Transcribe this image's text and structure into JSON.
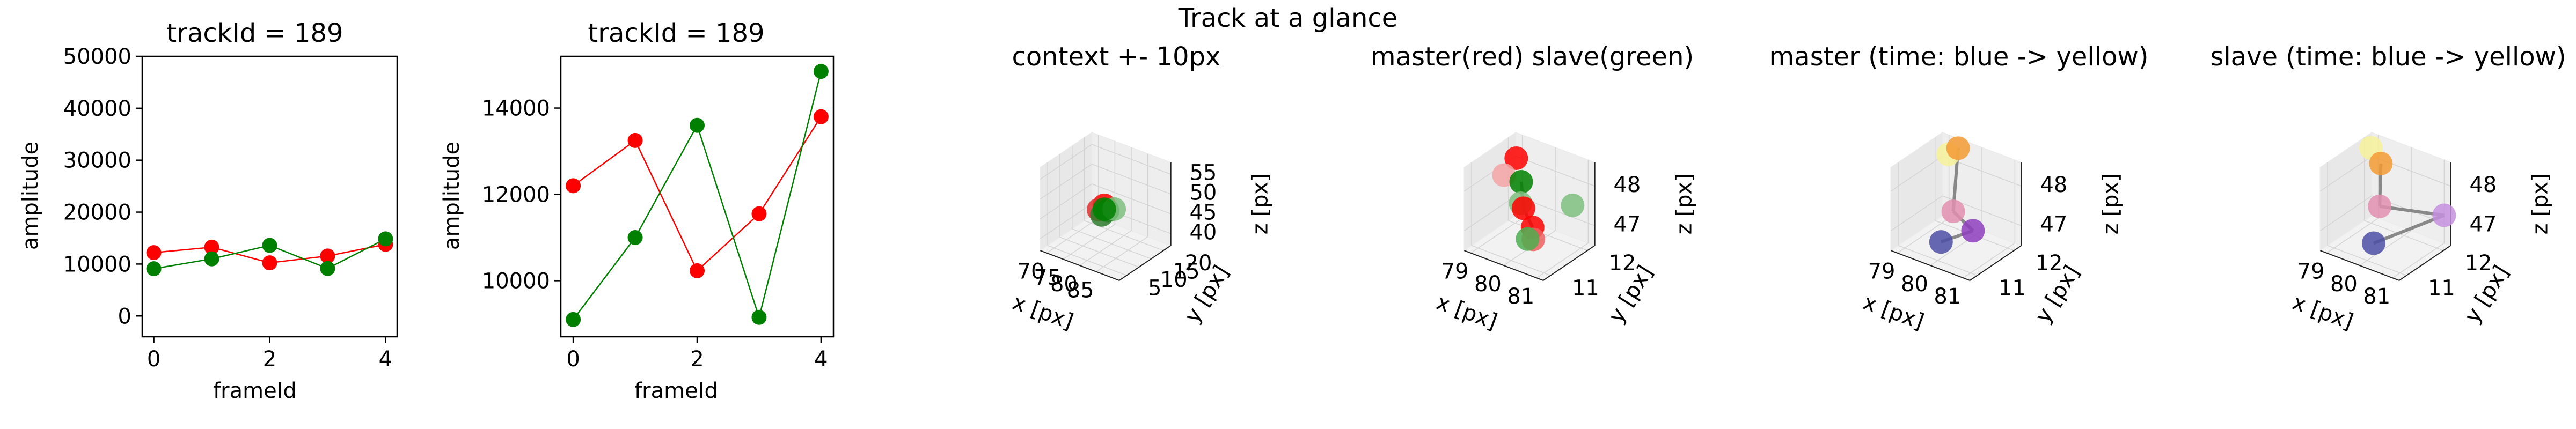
{
  "figure": {
    "suptitle": "Track at a glance"
  },
  "chart_data": [
    {
      "type": "line",
      "title": "trackId = 189",
      "xlabel": "frameId",
      "ylabel": "amplitude",
      "xlim": [
        -0.2,
        4.2
      ],
      "ylim": [
        -4000,
        50000
      ],
      "xticks": [
        0,
        2,
        4
      ],
      "yticks": [
        0,
        10000,
        20000,
        30000,
        40000,
        50000
      ],
      "x": [
        0,
        1,
        2,
        3,
        4
      ],
      "series": [
        {
          "color": "#ff0000",
          "values": [
            12200,
            13250,
            10230,
            11550,
            13800
          ]
        },
        {
          "color": "#008000",
          "values": [
            9100,
            11000,
            13600,
            9150,
            14850
          ]
        }
      ]
    },
    {
      "type": "line",
      "title": "trackId = 189",
      "xlabel": "frameId",
      "ylabel": "amplitude",
      "xlim": [
        -0.2,
        4.2
      ],
      "ylim": [
        8700,
        15200
      ],
      "xticks": [
        0,
        2,
        4
      ],
      "yticks": [
        10000,
        12000,
        14000
      ],
      "x": [
        0,
        1,
        2,
        3,
        4
      ],
      "series": [
        {
          "color": "#ff0000",
          "values": [
            12200,
            13250,
            10230,
            11550,
            13800
          ]
        },
        {
          "color": "#008000",
          "values": [
            9100,
            11000,
            13600,
            9150,
            14850
          ]
        }
      ]
    },
    {
      "type": "scatter",
      "title": "context +- 10px",
      "xlabel": "x [px]",
      "ylabel": "y [px]",
      "zlabel": "z [px]",
      "xlim": [
        68,
        92
      ],
      "ylim": [
        2,
        23
      ],
      "zlim": [
        37,
        58
      ],
      "xticks": [
        70,
        75,
        80,
        85
      ],
      "yticks": [
        5,
        10,
        15,
        20
      ],
      "zticks": [
        40,
        45,
        50,
        55
      ],
      "points": [
        {
          "x": 80,
          "y": 12,
          "z": 48,
          "color": "#ff0000"
        },
        {
          "x": 79,
          "y": 11,
          "z": 47,
          "color": "#e03030"
        },
        {
          "x": 81,
          "y": 12,
          "z": 47,
          "color": "#008000"
        },
        {
          "x": 80,
          "y": 11,
          "z": 46,
          "color": "#2e7d2e"
        },
        {
          "x": 83,
          "y": 12,
          "z": 48,
          "color": "#7fbf7f"
        },
        {
          "x": 80,
          "y": 12,
          "z": 47,
          "color": "#008000"
        }
      ]
    },
    {
      "type": "scatter",
      "title": "master(red) slave(green)",
      "xlabel": "x [px]",
      "ylabel": "y [px]",
      "zlabel": "z [px]",
      "xlim": [
        78.8,
        81.2
      ],
      "ylim": [
        10.8,
        12.2
      ],
      "zlim": [
        46.5,
        48.6
      ],
      "xticks": [
        79,
        80,
        81
      ],
      "yticks": [
        11,
        12
      ],
      "zticks": [
        47,
        48
      ],
      "points": [
        {
          "x": 79.15,
          "y": 11.9,
          "z": 48.25,
          "color": "#ff0000"
        },
        {
          "x": 79.0,
          "y": 11.7,
          "z": 47.9,
          "color": "#f4a4a4"
        },
        {
          "x": 79.3,
          "y": 11.9,
          "z": 47.7,
          "color": "#008000"
        },
        {
          "x": 79.45,
          "y": 11.75,
          "z": 47.3,
          "color": "#7fc07f"
        },
        {
          "x": 79.65,
          "y": 11.65,
          "z": 47.3,
          "color": "#ff0000"
        },
        {
          "x": 80.15,
          "y": 11.45,
          "z": 47.1,
          "color": "#ff0000"
        },
        {
          "x": 80.45,
          "y": 11.2,
          "z": 47.05,
          "color": "#f06060"
        },
        {
          "x": 80.75,
          "y": 12.0,
          "z": 47.5,
          "color": "#7fc07f"
        },
        {
          "x": 80.5,
          "y": 11.0,
          "z": 47.2,
          "color": "#4caf50"
        }
      ],
      "lines": [
        {
          "from": 2,
          "to": 4
        },
        {
          "from": 4,
          "to": 5
        },
        {
          "from": 5,
          "to": 6
        },
        {
          "from": 5,
          "to": 8
        }
      ]
    },
    {
      "type": "scatter",
      "title": "master (time: blue -> yellow)",
      "xlabel": "x [px]",
      "ylabel": "y [px]",
      "zlabel": "z [px]",
      "xlim": [
        78.8,
        81.2
      ],
      "ylim": [
        10.8,
        12.2
      ],
      "zlim": [
        46.5,
        48.6
      ],
      "xticks": [
        79,
        80,
        81
      ],
      "yticks": [
        11,
        12
      ],
      "zticks": [
        47,
        48
      ],
      "points": [
        {
          "x": 79.2,
          "y": 12.0,
          "z": 48.3,
          "color": "#f6f19a"
        },
        {
          "x": 79.5,
          "y": 12.0,
          "z": 48.55,
          "color": "#f39a32"
        },
        {
          "x": 79.8,
          "y": 11.6,
          "z": 47.3,
          "color": "#e38fb0"
        },
        {
          "x": 80.4,
          "y": 11.6,
          "z": 47.0,
          "color": "#8e3fbf"
        },
        {
          "x": 80.1,
          "y": 11.0,
          "z": 47.0,
          "color": "#4c4fa6"
        }
      ],
      "lines": [
        {
          "from": 1,
          "to": 2
        },
        {
          "from": 2,
          "to": 3
        },
        {
          "from": 3,
          "to": 4
        }
      ]
    },
    {
      "type": "scatter",
      "title": "slave (time: blue -> yellow)",
      "xlabel": "x [px]",
      "ylabel": "y [px]",
      "zlabel": "z [px]",
      "xlim": [
        78.8,
        81.2
      ],
      "ylim": [
        10.8,
        12.2
      ],
      "zlim": [
        46.5,
        48.6
      ],
      "xticks": [
        79,
        80,
        81
      ],
      "yticks": [
        11,
        12
      ],
      "zticks": [
        47,
        48
      ],
      "points": [
        {
          "x": 79.0,
          "y": 12.0,
          "z": 48.4,
          "color": "#f6f19a"
        },
        {
          "x": 79.3,
          "y": 12.0,
          "z": 48.1,
          "color": "#f39a32"
        },
        {
          "x": 79.6,
          "y": 11.7,
          "z": 47.3,
          "color": "#e38fb0"
        },
        {
          "x": 81.0,
          "y": 12.2,
          "z": 47.2,
          "color": "#c690e0"
        },
        {
          "x": 80.2,
          "y": 11.0,
          "z": 47.0,
          "color": "#4c4fa6"
        }
      ],
      "lines": [
        {
          "from": 1,
          "to": 2
        },
        {
          "from": 2,
          "to": 3
        },
        {
          "from": 3,
          "to": 4
        }
      ]
    }
  ]
}
